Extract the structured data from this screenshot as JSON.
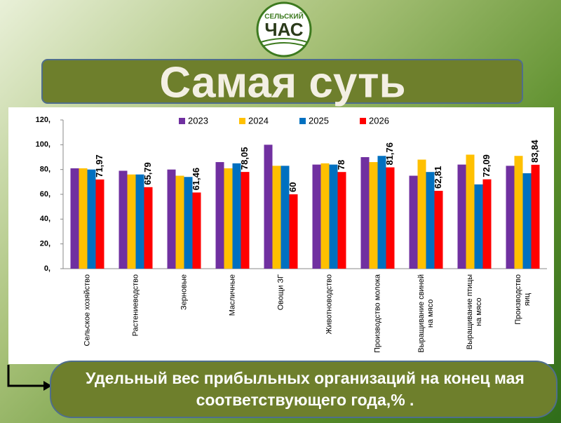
{
  "logo": {
    "line1": "СЕЛЬСКИЙ",
    "line2": "ЧАС"
  },
  "title": "Самая суть",
  "caption": "Удельный вес прибыльных организаций на конец мая соответствующего года,% .",
  "chart_data": {
    "type": "bar",
    "categories": [
      "Сельское хозяйство",
      "Растениеводство",
      "Зерновые",
      "Масличные",
      "Овощи ЗГ",
      "Животноводство",
      "Производство  молока",
      "Выращивание свиней\nна мясо",
      "Выращивание птицы\nна мясо",
      "Производство яиц"
    ],
    "series": [
      {
        "name": "2023",
        "color": "#7030a0",
        "values": [
          81,
          79,
          80,
          86,
          100,
          84,
          90,
          75,
          84,
          83
        ]
      },
      {
        "name": "2024",
        "color": "#ffc000",
        "values": [
          81,
          76,
          75,
          81,
          83,
          85,
          86,
          88,
          92,
          91
        ]
      },
      {
        "name": "2025",
        "color": "#0070c0",
        "values": [
          80,
          76,
          74,
          85,
          83,
          84,
          91,
          78,
          68,
          77
        ]
      },
      {
        "name": "2026",
        "color": "#ff0000",
        "values": [
          71.97,
          65.79,
          61.46,
          78.05,
          60,
          78,
          81.76,
          62.81,
          72.09,
          83.84
        ],
        "value_labels": [
          "71,97",
          "65,79",
          "61,46",
          "78,05",
          "60",
          "78",
          "81,76",
          "62,81",
          "72,09",
          "83,84"
        ]
      }
    ],
    "ylim": [
      0,
      120
    ],
    "yticks": [
      {
        "value": 0,
        "label": "0,"
      },
      {
        "value": 20,
        "label": "20,"
      },
      {
        "value": 40,
        "label": "40,"
      },
      {
        "value": 60,
        "label": "60,"
      },
      {
        "value": 80,
        "label": "80,"
      },
      {
        "value": 100,
        "label": "100,"
      },
      {
        "value": 120,
        "label": "120,"
      }
    ],
    "legend": "top"
  }
}
